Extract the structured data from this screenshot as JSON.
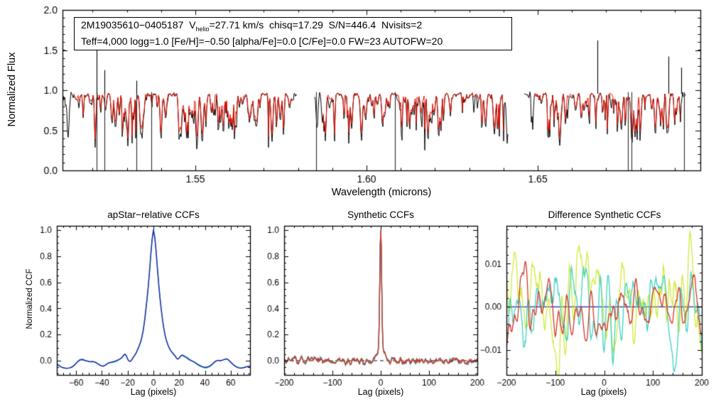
{
  "figure": {
    "background": "#ffffff",
    "colors": {
      "black": "#000000",
      "spectrum_model_red": "#ee1000",
      "navy": "#1e1ea8",
      "turquoise": "#3fd2c0",
      "chartreuse": "#d3e93c",
      "ccf_red": "#d53528"
    }
  },
  "top_panel": {
    "annotation": {
      "line1_pre": "2M19035610−0405187  V",
      "line1_sub": "helio",
      "line1_post": "=27.71 km/s  chisq=17.29  S/N=446.4  Nvisits=2",
      "line2": "Teff=4,000 logg=1.0 [Fe/H]=−0.50 [alpha/Fe]=0.0 [C/Fe]=0.0 FW=23 AUTOFW=20"
    }
  },
  "chart_data": [
    {
      "id": "apvisit-spectrum",
      "type": "line",
      "title": "",
      "xlabel": "Wavelength (microns)",
      "ylabel": "Normalized Flux",
      "xlim": [
        1.5112,
        1.6975
      ],
      "ylim": [
        0.0,
        2.0
      ],
      "x_ticks": [
        {
          "v": 1.55,
          "label": "1.55"
        },
        {
          "v": 1.6,
          "label": "1.60"
        },
        {
          "v": 1.65,
          "label": "1.65"
        }
      ],
      "y_ticks": [
        {
          "v": 0.0,
          "label": "0.0"
        },
        {
          "v": 0.5,
          "label": "0.5"
        },
        {
          "v": 1.0,
          "label": "1.0"
        },
        {
          "v": 1.5,
          "label": "1.5"
        },
        {
          "v": 2.0,
          "label": "2.0"
        }
      ],
      "x_minor_step": 0.01,
      "y_minor_step": 0.1,
      "grid": false,
      "series": [
        {
          "name": "observed spectrum",
          "color": "#000000"
        },
        {
          "name": "best-fit synthetic spectrum",
          "color": "#ee1000"
        }
      ],
      "continuum": 0.955,
      "segments": [
        {
          "wmin": 1.5112,
          "wmax": 1.5797,
          "model_wmin": 1.5146,
          "model_wmax": 1.5785
        },
        {
          "wmin": 1.5849,
          "wmax": 1.6413,
          "model_wmin": 1.5874,
          "model_wmax": 1.64
        },
        {
          "wmin": 1.6461,
          "wmax": 1.6932,
          "model_wmin": 1.649,
          "model_wmax": 1.6917
        }
      ],
      "deep_absorption_lines": [
        1.5212,
        1.5234,
        1.5328,
        1.5371,
        1.5853,
        1.6083,
        1.6764,
        1.6774,
        1.6928
      ],
      "emission_spikes": [
        {
          "w": 1.5212,
          "flux": 1.54
        },
        {
          "w": 1.5234,
          "flux": 1.25
        },
        {
          "w": 1.5328,
          "flux": 1.12
        },
        {
          "w": 1.6675,
          "flux": 1.62
        },
        {
          "w": 1.6882,
          "flux": 1.42
        },
        {
          "w": 1.6919,
          "flux": 1.28
        }
      ],
      "noise_model": {
        "seed": 7,
        "line_density": 0.55,
        "max_depth": 0.55,
        "jitter": 0.016,
        "black_depth_factor": 1.18
      }
    },
    {
      "id": "apstar-relative-ccfs",
      "type": "line",
      "title": "apStar−relative CCFs",
      "xlabel": "Lag (pixels)",
      "ylabel": "Normalized CCF",
      "xlim": [
        -75,
        75
      ],
      "ylim": [
        -0.109,
        1.033
      ],
      "x_ticks": [
        {
          "v": -60,
          "label": "−60"
        },
        {
          "v": -40,
          "label": "−40"
        },
        {
          "v": -20,
          "label": "−20"
        },
        {
          "v": 0,
          "label": "0"
        },
        {
          "v": 20,
          "label": "20"
        },
        {
          "v": 40,
          "label": "40"
        },
        {
          "v": 60,
          "label": "60"
        }
      ],
      "y_ticks": [
        {
          "v": 0.0,
          "label": "0.0"
        },
        {
          "v": 0.2,
          "label": "0.2"
        },
        {
          "v": 0.4,
          "label": "0.4"
        },
        {
          "v": 0.6,
          "label": "0.6"
        },
        {
          "v": 0.8,
          "label": "0.8"
        },
        {
          "v": 1.0,
          "label": "1.0"
        }
      ],
      "x_minor_step": 5,
      "y_minor_step": 0.05,
      "grid": false,
      "series": [
        {
          "name": "visit CCF",
          "color": "#3fd2c0",
          "offset_seed": 5,
          "offset_amp": 0.009
        },
        {
          "name": "combined CCF",
          "color": "#1e1ea8",
          "offset_seed": 0,
          "offset_amp": 0
        }
      ],
      "points": [
        [
          -75,
          -0.025
        ],
        [
          -73,
          -0.04
        ],
        [
          -71,
          -0.051
        ],
        [
          -69,
          -0.056
        ],
        [
          -67,
          -0.058
        ],
        [
          -65,
          -0.055
        ],
        [
          -63,
          -0.048
        ],
        [
          -61,
          -0.032
        ],
        [
          -59,
          -0.01
        ],
        [
          -57,
          0.006
        ],
        [
          -55,
          0.008
        ],
        [
          -53,
          0.001
        ],
        [
          -51,
          -0.004
        ],
        [
          -49,
          -0.008
        ],
        [
          -47,
          -0.006
        ],
        [
          -45,
          -0.012
        ],
        [
          -43,
          -0.025
        ],
        [
          -41,
          -0.038
        ],
        [
          -39,
          -0.043
        ],
        [
          -37,
          -0.031
        ],
        [
          -35,
          -0.018
        ],
        [
          -33,
          -0.012
        ],
        [
          -31,
          -0.007
        ],
        [
          -29,
          -0.001
        ],
        [
          -27,
          0.008
        ],
        [
          -25,
          0.02
        ],
        [
          -24,
          0.031
        ],
        [
          -23,
          0.044
        ],
        [
          -22,
          0.05
        ],
        [
          -21,
          0.036
        ],
        [
          -20,
          0.013
        ],
        [
          -19,
          -0.002
        ],
        [
          -18,
          -0.006
        ],
        [
          -17,
          0.004
        ],
        [
          -16,
          0.021
        ],
        [
          -15,
          0.034
        ],
        [
          -14,
          0.049
        ],
        [
          -13,
          0.068
        ],
        [
          -12,
          0.09
        ],
        [
          -11,
          0.114
        ],
        [
          -10,
          0.14
        ],
        [
          -9,
          0.178
        ],
        [
          -8,
          0.228
        ],
        [
          -7,
          0.295
        ],
        [
          -6,
          0.378
        ],
        [
          -5,
          0.468
        ],
        [
          -4,
          0.568
        ],
        [
          -3,
          0.688
        ],
        [
          -2,
          0.818
        ],
        [
          -1,
          0.93
        ],
        [
          0,
          1.0
        ],
        [
          1,
          0.948
        ],
        [
          2,
          0.848
        ],
        [
          3,
          0.72
        ],
        [
          4,
          0.598
        ],
        [
          5,
          0.49
        ],
        [
          6,
          0.398
        ],
        [
          7,
          0.318
        ],
        [
          8,
          0.25
        ],
        [
          9,
          0.198
        ],
        [
          10,
          0.158
        ],
        [
          11,
          0.128
        ],
        [
          12,
          0.104
        ],
        [
          13,
          0.085
        ],
        [
          14,
          0.07
        ],
        [
          15,
          0.058
        ],
        [
          16,
          0.047
        ],
        [
          17,
          0.034
        ],
        [
          18,
          0.018
        ],
        [
          19,
          0.012
        ],
        [
          20,
          0.02
        ],
        [
          21,
          0.032
        ],
        [
          22,
          0.042
        ],
        [
          23,
          0.038
        ],
        [
          24,
          0.032
        ],
        [
          25,
          0.028
        ],
        [
          26,
          0.02
        ],
        [
          27,
          0.012
        ],
        [
          28,
          0.006
        ],
        [
          29,
          0.002
        ],
        [
          30,
          -0.002
        ],
        [
          32,
          -0.012
        ],
        [
          34,
          -0.025
        ],
        [
          36,
          -0.036
        ],
        [
          38,
          -0.046
        ],
        [
          40,
          -0.052
        ],
        [
          42,
          -0.048
        ],
        [
          44,
          -0.039
        ],
        [
          46,
          -0.024
        ],
        [
          48,
          -0.005
        ],
        [
          50,
          0.003
        ],
        [
          52,
          0.0
        ],
        [
          54,
          0.006
        ],
        [
          56,
          0.012
        ],
        [
          57,
          0.014
        ],
        [
          58,
          0.008
        ],
        [
          60,
          -0.012
        ],
        [
          62,
          -0.031
        ],
        [
          64,
          -0.046
        ],
        [
          66,
          -0.055
        ],
        [
          68,
          -0.058
        ],
        [
          70,
          -0.053
        ],
        [
          72,
          -0.048
        ],
        [
          74,
          -0.043
        ],
        [
          75,
          -0.04
        ]
      ]
    },
    {
      "id": "synthetic-ccfs",
      "type": "line",
      "title": "Synthetic CCFs",
      "xlabel": "Lag (pixels)",
      "ylabel": "",
      "xlim": [
        -200,
        200
      ],
      "ylim": [
        -0.109,
        1.033
      ],
      "x_ticks": [
        {
          "v": -200,
          "label": "−200"
        },
        {
          "v": -100,
          "label": "−100"
        },
        {
          "v": 0,
          "label": "0"
        },
        {
          "v": 100,
          "label": "100"
        },
        {
          "v": 200,
          "label": "200"
        }
      ],
      "y_ticks": [
        {
          "v": 0.0,
          "label": "0.0"
        },
        {
          "v": 0.2,
          "label": "0.2"
        },
        {
          "v": 0.4,
          "label": "0.4"
        },
        {
          "v": 0.6,
          "label": "0.6"
        },
        {
          "v": 0.8,
          "label": "0.8"
        },
        {
          "v": 1.0,
          "label": "1.0"
        }
      ],
      "x_minor_step": 20,
      "y_minor_step": 0.05,
      "grid": false,
      "zero_line": {
        "style": "dashed",
        "color": "#111111",
        "y": 0.0
      },
      "peak": {
        "height": 1.0,
        "core_sigma": 1.9,
        "wing_sigma": 8.0,
        "wing_frac": 0.1
      },
      "baseline_noise": {
        "shared_seed": 31,
        "shared_amp": 0.036,
        "per_series_amp": 0.009
      },
      "series": [
        {
          "name": "synthetic CCF 1",
          "color": "#d3e93c",
          "seed": 41
        },
        {
          "name": "synthetic CCF 2",
          "color": "#1e1ea8",
          "seed": 42
        },
        {
          "name": "synthetic CCF 3",
          "color": "#3fd2c0",
          "seed": 43
        },
        {
          "name": "synthetic CCF 4",
          "color": "#d53528",
          "seed": 44
        }
      ]
    },
    {
      "id": "difference-synthetic-ccfs",
      "type": "line",
      "title": "Difference Synthetic CCFs",
      "xlabel": "Lag (pixels)",
      "ylabel": "",
      "xlim": [
        -200,
        200
      ],
      "ylim": [
        -0.0158,
        0.0188
      ],
      "x_ticks": [
        {
          "v": -200,
          "label": "−200"
        },
        {
          "v": -100,
          "label": "−100"
        },
        {
          "v": 0,
          "label": "0"
        },
        {
          "v": 100,
          "label": "100"
        },
        {
          "v": 200,
          "label": "200"
        }
      ],
      "y_ticks": [
        {
          "v": -0.01,
          "label": "−0.01"
        },
        {
          "v": 0.0,
          "label": "0.00"
        },
        {
          "v": 0.01,
          "label": "0.01"
        }
      ],
      "x_minor_step": 20,
      "y_minor_step": 0.002,
      "grid": false,
      "zero_line": {
        "style": "solid",
        "color": "#1e1ea8",
        "y": 0.0
      },
      "series": [
        {
          "name": "difference 1",
          "color": "#d3e93c",
          "seed": 61,
          "peak_amp": 0.018
        },
        {
          "name": "difference 2",
          "color": "#3fd2c0",
          "seed": 62,
          "peak_amp": 0.015
        },
        {
          "name": "difference 3",
          "color": "#d53528",
          "seed": 63,
          "peak_amp": 0.0105
        }
      ]
    }
  ]
}
